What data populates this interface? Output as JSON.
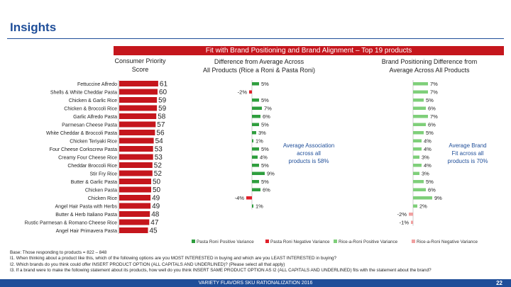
{
  "header": {
    "title": "Insights"
  },
  "banner": {
    "text": "Fit with Brand Positioning and Brand Alignment – Top 19 products"
  },
  "columns": {
    "score": {
      "line1": "Consumer Priority",
      "line2": "Score"
    },
    "diff": {
      "line1": "Difference from Average Across",
      "line2": "All Products (Rice a Roni & Pasta Roni)"
    },
    "brand": {
      "line1": "Brand Positioning Difference from",
      "line2": "Average Across All Products"
    }
  },
  "annotations": {
    "association": [
      "Average Association",
      "across all",
      "products is 58%"
    ],
    "brand_fit": [
      "Average Brand",
      "Fit across all",
      "products is 70%"
    ]
  },
  "colors": {
    "score_bar": "#c5161d",
    "pasta_positive": "#2f9e3e",
    "pasta_negative": "#e0202a",
    "rice_positive": "#7fcf7a",
    "rice_negative": "#f0a0a0"
  },
  "chart_data": {
    "type": "bar",
    "categories": [
      "Fettuccine Alfredo",
      "Shells & White Cheddar Pasta",
      "Chicken & Garlic Rice",
      "Chicken & Broccoli Rice",
      "Garlic Alfredo Pasta",
      "Parmesan Cheese Pasta",
      "White Cheddar & Broccoli Pasta",
      "Chicken Teriyaki Rice",
      "Four Cheese Corkscrew Pasta",
      "Creamy Four Cheese Rice",
      "Cheddar Broccoli Rice",
      "Stir Fry Rice",
      "Butter & Garlic Pasta",
      "Chicken Pasta",
      "Chicken Rice",
      "Angel Hair Pasta with Herbs",
      "Butter & Herb Italiano Pasta",
      "Rustic Parmesan & Romano Cheese Rice",
      "Angel Hair Primavera Pasta"
    ],
    "series": [
      {
        "name": "Consumer Priority Score",
        "values": [
          61,
          60,
          59,
          59,
          58,
          57,
          56,
          54,
          53,
          53,
          52,
          52,
          50,
          50,
          49,
          49,
          48,
          47,
          45
        ]
      },
      {
        "name": "Difference from Average Across All Products",
        "values": [
          5,
          -2,
          5,
          7,
          6,
          5,
          3,
          1,
          5,
          4,
          5,
          9,
          5,
          6,
          -4,
          1,
          null,
          null,
          null
        ]
      },
      {
        "name": "Brand Positioning Difference from Average",
        "values": [
          7,
          7,
          5,
          6,
          7,
          6,
          5,
          4,
          4,
          3,
          4,
          3,
          5,
          6,
          9,
          2,
          -2,
          -1,
          null
        ]
      }
    ],
    "score_labels": [
      "61",
      "60",
      "59",
      "59",
      "58",
      "57",
      "56",
      "54",
      "53",
      "53",
      "52",
      "52",
      "50",
      "50",
      "49",
      "49",
      "48",
      "47",
      "45"
    ],
    "diff_labels": [
      "5%",
      "-2%",
      "5%",
      "7%",
      "6%",
      "5%",
      "3%",
      "1%",
      "5%",
      "4%",
      "5%",
      "9%",
      "5%",
      "6%",
      "-4%",
      "1%"
    ],
    "brand_labels": [
      "7%",
      "7%",
      "5%",
      "6%",
      "7%",
      "6%",
      "5%",
      "4%",
      "4%",
      "3%",
      "4%",
      "3%",
      "5%",
      "6%",
      "9%",
      "2%",
      "-2%",
      "-1%"
    ],
    "legend": [
      "Pasta Roni Positive Variance",
      "Pasta Roni Negative Variance",
      "Rice-a-Roni Positive Variance",
      "Rice-a-Roni Negative Variance"
    ],
    "legend_position": "bottom"
  },
  "notes": [
    "Base: Those responding to products = 822 – 848",
    "I1. When thinking about a product like this, which of the following options are you MOST INTERESTED in buying and which are you LEAST INTERESTED in buying?",
    "I2. Which brands do you think could offer INSERT PRODUCT OPTION (ALL CAPITALS AND UNDERLINED)? (Please select all that apply)",
    "I3. If a brand were to make the following statement about its products, how well do you think INSERT SAME PRODUCT OPTION AS I2 (ALL CAPITALS AND UNDERLINED) fits with the statement about the brand?"
  ],
  "footer": {
    "text": "VARIETY FLAVORS SKU RATIONALIZATION 2016",
    "page": "22"
  }
}
